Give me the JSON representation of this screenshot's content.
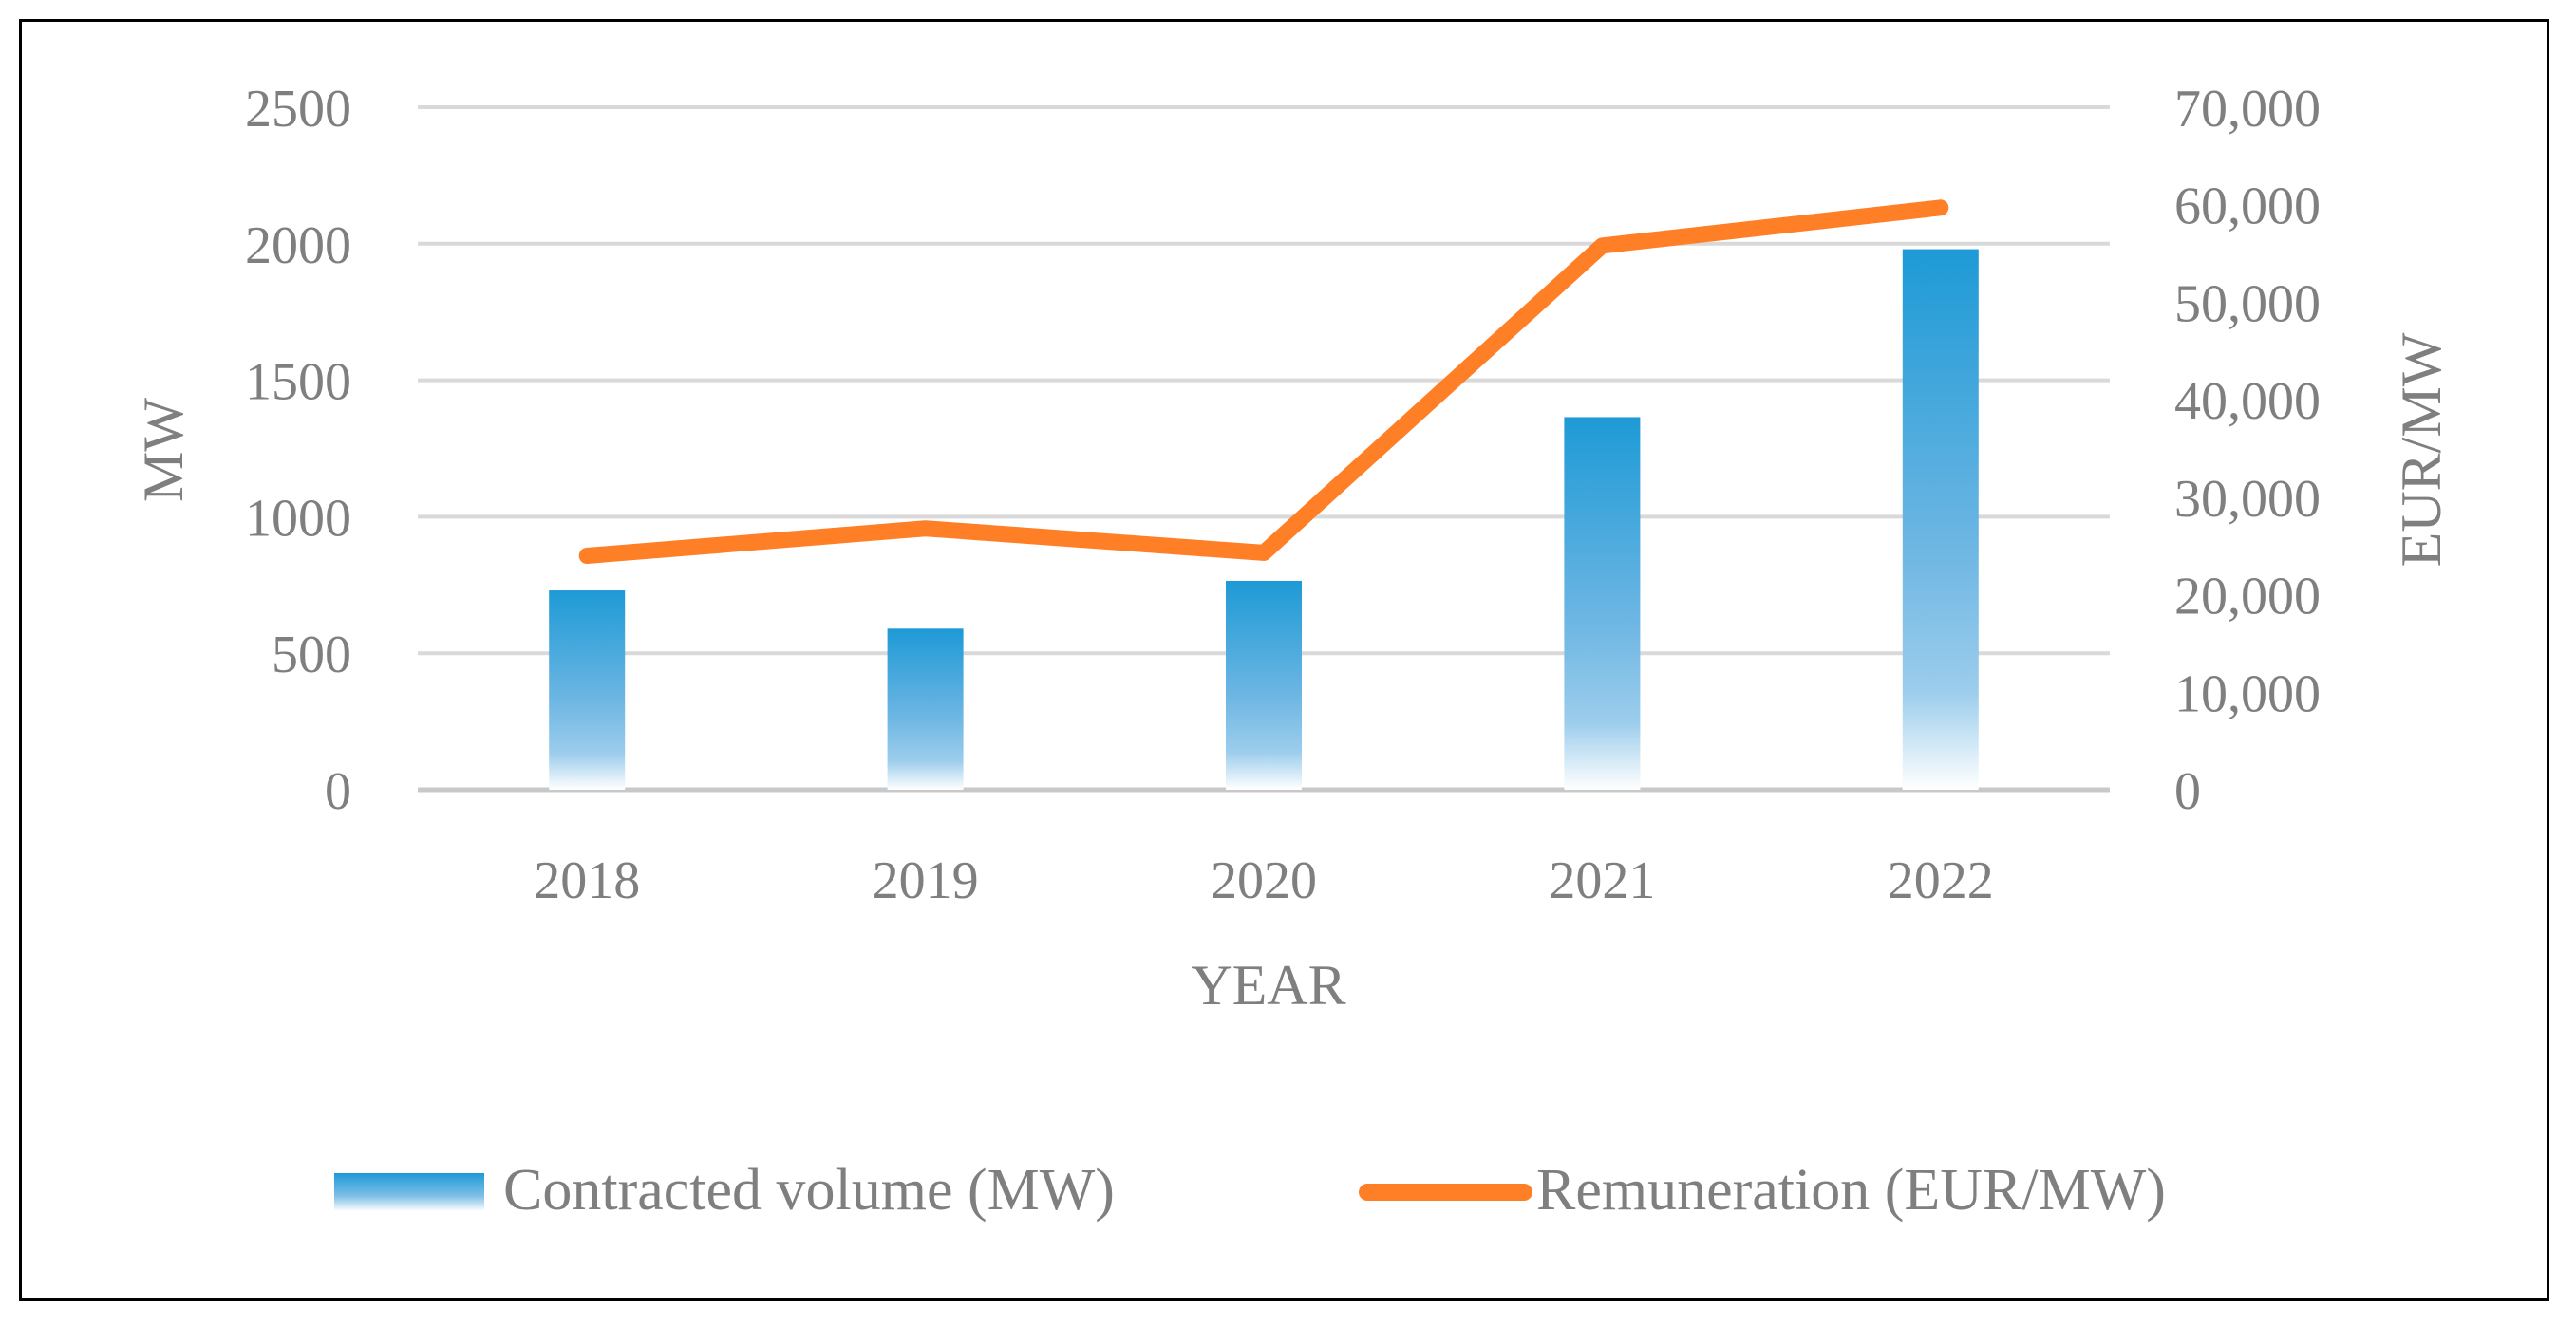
{
  "chart_data": {
    "type": "bar+line",
    "title": "",
    "categories": [
      "2018",
      "2019",
      "2020",
      "2021",
      "2022"
    ],
    "xlabel": "YEAR",
    "ylabel": "MW",
    "y2label": "EUR/MW",
    "ylim": [
      0,
      2500
    ],
    "y2lim": [
      0,
      70000
    ],
    "yticks": [
      "0",
      "500",
      "1000",
      "1500",
      "2000",
      "2500"
    ],
    "y2ticks": [
      "0",
      "10,000",
      "20,000",
      "30,000",
      "40,000",
      "50,000",
      "60,000",
      "70,000"
    ],
    "grid": true,
    "legend_position": "bottom",
    "series": [
      {
        "name": "Contracted volume (MW)",
        "type": "bar",
        "axis": "left",
        "color": "#1E9AD6",
        "values": [
          730,
          590,
          765,
          1365,
          1980
        ]
      },
      {
        "name": "Remuneration (EUR/MW)",
        "type": "line",
        "axis": "right",
        "color": "#FF7F27",
        "values": [
          24000,
          26800,
          24300,
          55800,
          59700
        ]
      }
    ]
  }
}
